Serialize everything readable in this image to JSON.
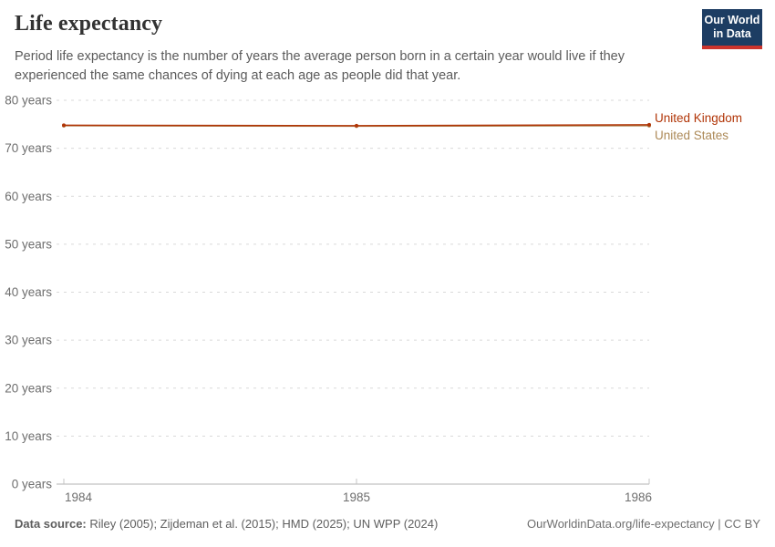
{
  "chart_data": {
    "type": "line",
    "title": "Life expectancy",
    "subtitle": "Period life expectancy is the number of years the average person born in a certain year would live if they experienced the same chances of dying at each age as people did that year.",
    "x": [
      1984,
      1985,
      1986
    ],
    "xticks": [
      1984,
      1985,
      1986
    ],
    "series": [
      {
        "name": "United Kingdom",
        "values": [
          74.8,
          74.7,
          74.9
        ],
        "color": "#b13507"
      },
      {
        "name": "United States",
        "values": [
          74.7,
          74.6,
          74.7
        ],
        "color": "#ad8a58"
      }
    ],
    "ylim": [
      0,
      80
    ],
    "xlim": [
      1984,
      1986
    ],
    "yticks": [
      0,
      10,
      20,
      30,
      40,
      50,
      60,
      70,
      80
    ],
    "ytick_suffix": " years",
    "grid": "horizontal-dashed",
    "legend_position": "right-of-line-end",
    "colors": {
      "gridline": "#d9d9d9",
      "axis": "#b3b3b3",
      "tick": "#c4c4c4",
      "tick_label": "#6e6e6e"
    }
  },
  "header": {
    "logo": {
      "line1": "Our World",
      "line2": "in Data",
      "bg": "#1d3d63",
      "accent": "#cc342d"
    }
  },
  "footer": {
    "source_label": "Data source:",
    "source_text": " Riley (2005); Zijdeman et al. (2015); HMD (2025); UN WPP (2024)",
    "credit": "OurWorldinData.org/life-expectancy | CC BY"
  }
}
